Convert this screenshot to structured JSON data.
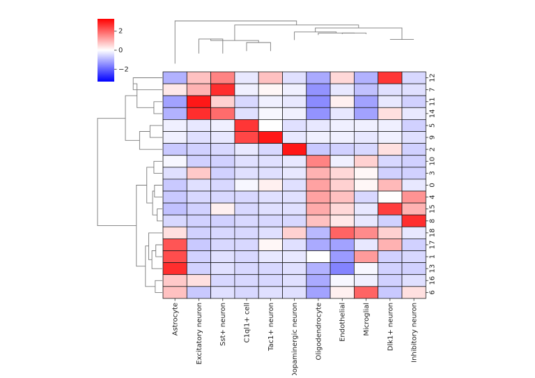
{
  "chart_data": {
    "type": "heatmap",
    "title": "",
    "columns": [
      "Astrocyte",
      "Excitatory neuron",
      "Sst+ neuron",
      "C1ql1+ cell",
      "Tac1+ neuron",
      "Dopaminergic neuron",
      "Oligodendrocyte",
      "Endothelial",
      "Microglial",
      "Dlk1+ neuron",
      "Inhibitory neuron"
    ],
    "rows": [
      "12",
      "7",
      "11",
      "14",
      "5",
      "9",
      "2",
      "10",
      "3",
      "0",
      "4",
      "15",
      "8",
      "18",
      "17",
      "1",
      "13",
      "16",
      "6"
    ],
    "row_tick_labels": [
      "12",
      "7",
      "11",
      "14",
      "5",
      "9",
      "2",
      "10",
      "3",
      "0",
      "4",
      "15",
      "8",
      "18",
      "17",
      "1",
      "13",
      "16",
      "6"
    ],
    "col_tick_labels": [
      "Astrocyte",
      "Excitatory neuron",
      "Sst+ neuron",
      "C1ql1+ cell",
      "Tac1+ neuron",
      "Dopaminergic neuron",
      "Oligodendrocyte",
      "Endothelial",
      "Microglial",
      "Dlk1+ neuron",
      "Inhibitory neuron"
    ],
    "values": [
      [
        -1.0,
        0.8,
        1.6,
        -0.3,
        0.8,
        -0.4,
        -1.1,
        0.5,
        -1.0,
        2.6,
        -0.5
      ],
      [
        0.3,
        1.0,
        2.7,
        -0.2,
        0.1,
        -0.2,
        -1.4,
        -0.3,
        -0.8,
        -0.4,
        -0.4
      ],
      [
        -1.2,
        3.0,
        0.6,
        -0.5,
        -0.2,
        -0.3,
        -1.5,
        0.2,
        -1.2,
        -0.3,
        -0.6
      ],
      [
        -1.0,
        2.7,
        1.9,
        -0.4,
        -0.1,
        -0.2,
        -1.4,
        -0.3,
        -1.2,
        0.4,
        -0.3
      ],
      [
        -0.2,
        -0.3,
        -0.2,
        2.6,
        0.0,
        -0.4,
        -0.3,
        -0.2,
        -0.2,
        -0.2,
        -0.6
      ],
      [
        -0.2,
        -0.4,
        -0.3,
        2.4,
        3.0,
        -0.3,
        -0.2,
        -0.2,
        -0.3,
        -0.2,
        -0.4
      ],
      [
        -0.7,
        -0.6,
        -0.5,
        -0.3,
        -0.5,
        3.0,
        -0.7,
        -0.6,
        -0.5,
        0.4,
        -0.6
      ],
      [
        -0.1,
        -0.6,
        -0.6,
        -0.4,
        -0.4,
        -0.3,
        1.6,
        -0.2,
        0.6,
        -0.5,
        -0.6
      ],
      [
        -0.4,
        0.7,
        -0.6,
        -0.4,
        -0.4,
        -0.3,
        1.0,
        0.5,
        0.1,
        -0.6,
        -0.6
      ],
      [
        -0.7,
        -0.4,
        -0.5,
        -0.1,
        0.2,
        -0.4,
        1.2,
        0.6,
        0.1,
        0.9,
        -0.3
      ],
      [
        -0.7,
        -0.5,
        -0.5,
        -0.5,
        -0.4,
        -0.4,
        1.2,
        0.8,
        -0.5,
        0.0,
        1.4
      ],
      [
        -0.8,
        -0.6,
        0.2,
        -0.5,
        -0.4,
        -0.4,
        1.1,
        0.5,
        -0.3,
        2.5,
        1.0
      ],
      [
        -0.5,
        -0.6,
        -0.6,
        -0.5,
        -0.5,
        -0.5,
        0.8,
        0.3,
        -0.3,
        -0.6,
        2.7
      ],
      [
        0.4,
        -0.6,
        -0.5,
        -0.5,
        -0.4,
        0.6,
        -0.9,
        2.0,
        1.5,
        0.6,
        -0.3
      ],
      [
        2.2,
        -0.7,
        -0.5,
        -0.5,
        0.1,
        -0.4,
        -1.1,
        -1.2,
        -0.3,
        1.0,
        -0.6
      ],
      [
        2.3,
        -0.6,
        -0.4,
        -0.5,
        -0.3,
        -0.3,
        0.0,
        -1.3,
        1.3,
        -0.6,
        -0.5
      ],
      [
        2.7,
        -0.6,
        -0.4,
        -0.5,
        -0.5,
        -0.4,
        -1.0,
        -1.6,
        -0.1,
        -0.6,
        -0.6
      ],
      [
        0.7,
        0.4,
        -0.5,
        -0.5,
        -0.5,
        -0.4,
        -1.1,
        -0.1,
        -0.2,
        -0.6,
        -0.4
      ],
      [
        0.8,
        -0.7,
        -0.4,
        -0.5,
        -0.4,
        -0.4,
        -1.2,
        0.2,
        2.0,
        -0.7,
        0.4
      ]
    ],
    "colorbar": {
      "vmin": -3.3,
      "vmax": 3.3,
      "ticks": [
        2,
        0,
        -2
      ],
      "tick_labels": [
        "2",
        "0",
        "−2"
      ],
      "cmap": "bwr"
    },
    "col_dendrogram": [
      [
        [
          10,
          63
        ],
        [
          10,
          63
        ],
        [
          11,
          63
        ],
        [
          11,
          63
        ]
      ],
      [
        [
          8,
          74
        ],
        [
          8,
          76
        ],
        [
          9,
          76
        ],
        [
          9,
          74
        ]
      ],
      [
        [
          7,
          72
        ],
        [
          7,
          76
        ],
        [
          8.5,
          76
        ],
        [
          8.5,
          75
        ]
      ],
      [
        [
          6,
          62
        ],
        [
          6,
          78
        ],
        [
          7.75,
          78
        ],
        [
          7.75,
          76
        ]
      ],
      [
        [
          10.5,
          63
        ],
        [
          10.5,
          86
        ],
        [
          6.875,
          86
        ],
        [
          6.875,
          78
        ]
      ],
      [
        [
          4,
          40
        ],
        [
          4,
          57
        ],
        [
          5,
          57
        ],
        [
          5,
          40
        ]
      ],
      [
        [
          2,
          35
        ],
        [
          2,
          64
        ],
        [
          3,
          64
        ],
        [
          3,
          35
        ]
      ],
      [
        [
          4.5,
          57
        ],
        [
          4.5,
          61
        ],
        [
          2.5,
          61
        ],
        [
          2.5,
          64
        ]
      ],
      [
        [
          8.6875,
          86
        ],
        [
          8.6875,
          92
        ],
        [
          3.5,
          92
        ],
        [
          3.5,
          61
        ]
      ],
      [
        [
          1,
          15
        ],
        [
          1,
          100
        ],
        [
          6.09,
          100
        ],
        [
          6.09,
          92
        ]
      ]
    ],
    "row_dendrogram": [
      [
        [
          0,
          1
        ],
        [
          45,
          1
        ],
        [
          45,
          0
        ],
        [
          0,
          0
        ]
      ],
      [
        [
          0,
          2
        ],
        [
          13,
          2
        ],
        [
          13,
          3
        ],
        [
          0,
          3
        ]
      ],
      [
        [
          13,
          2.5
        ],
        [
          39,
          2.5
        ],
        [
          39,
          0.5
        ],
        [
          45,
          0.5
        ]
      ],
      [
        [
          0,
          4
        ],
        [
          19,
          4
        ],
        [
          19,
          5
        ],
        [
          0,
          5
        ]
      ],
      [
        [
          19,
          4.5
        ],
        [
          35,
          4.5
        ],
        [
          35,
          6
        ],
        [
          0,
          6
        ]
      ],
      [
        [
          39,
          1.5
        ],
        [
          57,
          1.5
        ],
        [
          57,
          5.25
        ],
        [
          35,
          5.25
        ]
      ],
      [
        [
          0,
          7
        ],
        [
          13,
          7
        ],
        [
          13,
          8
        ],
        [
          0,
          8
        ]
      ],
      [
        [
          0,
          9
        ],
        [
          12,
          9
        ],
        [
          12,
          10
        ],
        [
          0,
          10
        ]
      ],
      [
        [
          0,
          11
        ],
        [
          8,
          11
        ],
        [
          8,
          12
        ],
        [
          0,
          12
        ]
      ],
      [
        [
          8,
          11.5
        ],
        [
          15,
          11.5
        ],
        [
          15,
          9.5
        ],
        [
          12,
          9.5
        ]
      ],
      [
        [
          13,
          7.5
        ],
        [
          24,
          7.5
        ],
        [
          24,
          10.5
        ],
        [
          15,
          10.5
        ]
      ],
      [
        [
          0,
          14
        ],
        [
          10,
          14
        ],
        [
          10,
          15
        ],
        [
          0,
          15
        ]
      ],
      [
        [
          10,
          14.5
        ],
        [
          16,
          14.5
        ],
        [
          16,
          16
        ],
        [
          0,
          16
        ]
      ],
      [
        [
          16,
          15.25
        ],
        [
          21,
          15.25
        ],
        [
          21,
          13
        ],
        [
          0,
          13
        ]
      ],
      [
        [
          0,
          17
        ],
        [
          11,
          17
        ],
        [
          11,
          18
        ],
        [
          0,
          18
        ]
      ],
      [
        [
          21,
          14.1
        ],
        [
          26,
          14.1
        ],
        [
          26,
          17.5
        ],
        [
          11,
          17.5
        ]
      ],
      [
        [
          24,
          9
        ],
        [
          40,
          9
        ],
        [
          40,
          15.8
        ],
        [
          26,
          15.8
        ]
      ],
      [
        [
          57,
          3.4
        ],
        [
          100,
          3.4
        ],
        [
          100,
          12.4
        ],
        [
          40,
          12.4
        ]
      ]
    ]
  }
}
